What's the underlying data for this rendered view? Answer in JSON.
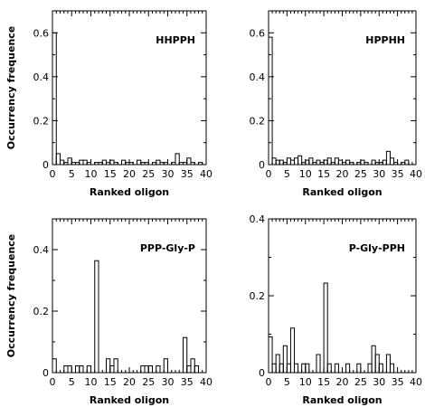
{
  "chart_data": [
    {
      "type": "bar",
      "label": "HHPPH",
      "xlabel": "Ranked oligon",
      "ylabel": "Occurrency frequence",
      "xlim": [
        0,
        40
      ],
      "ylim": [
        0,
        0.7
      ],
      "xticks": [
        0,
        5,
        10,
        15,
        20,
        25,
        30,
        35,
        40
      ],
      "yticks": [
        0,
        0.2,
        0.4,
        0.6
      ],
      "x": [
        1,
        2,
        3,
        4,
        5,
        6,
        7,
        8,
        9,
        10,
        11,
        12,
        13,
        14,
        15,
        16,
        17,
        18,
        19,
        20,
        21,
        22,
        23,
        24,
        25,
        26,
        27,
        28,
        29,
        30,
        31,
        32,
        33,
        34,
        35,
        36,
        37,
        38,
        39,
        40
      ],
      "values": [
        0.6,
        0.05,
        0.02,
        0.01,
        0.03,
        0.01,
        0.01,
        0.02,
        0.02,
        0.01,
        0.0,
        0.01,
        0.01,
        0.02,
        0.01,
        0.02,
        0.01,
        0.0,
        0.02,
        0.01,
        0.01,
        0.0,
        0.02,
        0.01,
        0.01,
        0.0,
        0.01,
        0.02,
        0.01,
        0.01,
        0.0,
        0.01,
        0.05,
        0.01,
        0.01,
        0.03,
        0.01,
        0.0,
        0.01,
        0.0
      ]
    },
    {
      "type": "bar",
      "label": "HPPHH",
      "xlabel": "Ranked oligon",
      "ylabel": "",
      "xlim": [
        0,
        40
      ],
      "ylim": [
        0,
        0.7
      ],
      "xticks": [
        0,
        5,
        10,
        15,
        20,
        25,
        30,
        35,
        40
      ],
      "yticks": [
        0,
        0.2,
        0.4,
        0.6
      ],
      "x": [
        1,
        2,
        3,
        4,
        5,
        6,
        7,
        8,
        9,
        10,
        11,
        12,
        13,
        14,
        15,
        16,
        17,
        18,
        19,
        20,
        21,
        22,
        23,
        24,
        25,
        26,
        27,
        28,
        29,
        30,
        31,
        32,
        33,
        34,
        35,
        36,
        37,
        38,
        39,
        40
      ],
      "values": [
        0.58,
        0.03,
        0.02,
        0.02,
        0.01,
        0.03,
        0.02,
        0.03,
        0.04,
        0.01,
        0.02,
        0.03,
        0.01,
        0.02,
        0.01,
        0.02,
        0.03,
        0.01,
        0.03,
        0.02,
        0.01,
        0.02,
        0.01,
        0.0,
        0.01,
        0.02,
        0.01,
        0.0,
        0.02,
        0.01,
        0.01,
        0.02,
        0.06,
        0.03,
        0.01,
        0.0,
        0.01,
        0.02,
        0.0,
        0.0
      ]
    },
    {
      "type": "bar",
      "label": "PPP-Gly-P",
      "xlabel": "Ranked oligon",
      "ylabel": "Occurrency frequence",
      "xlim": [
        0,
        40
      ],
      "ylim": [
        0,
        0.5
      ],
      "xticks": [
        0,
        5,
        10,
        15,
        20,
        25,
        30,
        35,
        40
      ],
      "yticks": [
        0,
        0.2,
        0.4
      ],
      "x": [
        1,
        2,
        3,
        4,
        5,
        6,
        7,
        8,
        9,
        10,
        11,
        12,
        13,
        14,
        15,
        16,
        17,
        18,
        19,
        20,
        21,
        22,
        23,
        24,
        25,
        26,
        27,
        28,
        29,
        30,
        31,
        32,
        33,
        34,
        35,
        36,
        37,
        38,
        39,
        40
      ],
      "values": [
        0.045,
        0.0,
        0.0,
        0.022,
        0.022,
        0.0,
        0.022,
        0.022,
        0.0,
        0.022,
        0.0,
        0.364,
        0.0,
        0.0,
        0.045,
        0.022,
        0.045,
        0.0,
        0.0,
        0.0,
        0.0,
        0.0,
        0.0,
        0.022,
        0.022,
        0.022,
        0.0,
        0.022,
        0.0,
        0.045,
        0.0,
        0.0,
        0.0,
        0.0,
        0.114,
        0.022,
        0.045,
        0.022,
        0.0,
        0.0
      ]
    },
    {
      "type": "bar",
      "label": "P-Gly-PPH",
      "xlabel": "Ranked oligon",
      "ylabel": "",
      "xlim": [
        0,
        40
      ],
      "ylim": [
        0,
        0.4
      ],
      "xticks": [
        0,
        5,
        10,
        15,
        20,
        25,
        30,
        35,
        40
      ],
      "yticks": [
        0,
        0.2,
        0.4
      ],
      "x": [
        1,
        2,
        3,
        4,
        5,
        6,
        7,
        8,
        9,
        10,
        11,
        12,
        13,
        14,
        15,
        16,
        17,
        18,
        19,
        20,
        21,
        22,
        23,
        24,
        25,
        26,
        27,
        28,
        29,
        30,
        31,
        32,
        33,
        34,
        35,
        36,
        37,
        38,
        39,
        40
      ],
      "values": [
        0.093,
        0.023,
        0.047,
        0.023,
        0.07,
        0.023,
        0.116,
        0.023,
        0.0,
        0.023,
        0.023,
        0.0,
        0.0,
        0.047,
        0.0,
        0.233,
        0.023,
        0.0,
        0.023,
        0.0,
        0.0,
        0.023,
        0.0,
        0.0,
        0.023,
        0.0,
        0.0,
        0.023,
        0.07,
        0.047,
        0.023,
        0.0,
        0.047,
        0.023,
        0.0,
        0.0,
        0.0,
        0.0,
        0.0,
        0.0
      ]
    }
  ]
}
